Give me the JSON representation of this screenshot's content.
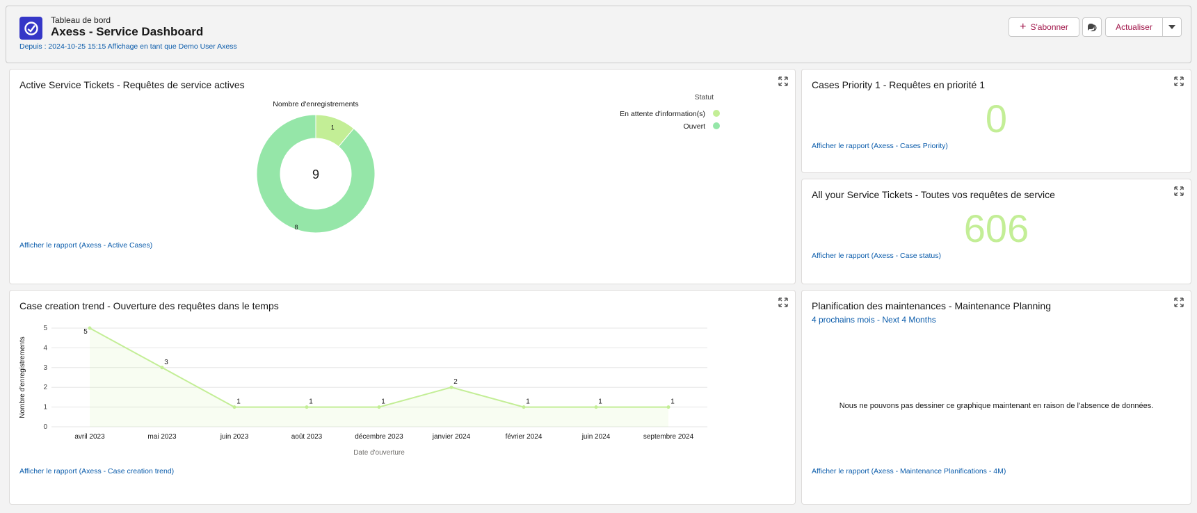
{
  "header": {
    "kicker": "Tableau de bord",
    "title": "Axess - Service Dashboard",
    "meta": "Depuis : 2024-10-25 15:15 Affichage en tant que Demo User Axess",
    "subscribe_label": "S'abonner",
    "refresh_label": "Actualiser",
    "icon": "dashboard-gauge-icon"
  },
  "panels": {
    "active_cases": {
      "title": "Active Service Tickets - Requêtes de service actives",
      "link": "Afficher le rapport (Axess - Active Cases)"
    },
    "priority": {
      "title": "Cases Priority 1 - Requêtes en priorité 1",
      "value": "0",
      "link": "Afficher le rapport (Axess - Cases Priority)"
    },
    "all_tickets": {
      "title": "All your Service Tickets - Toutes vos requêtes de service",
      "value": "606",
      "link": "Afficher le rapport (Axess - Case status)"
    },
    "trend": {
      "title": "Case creation trend - Ouverture des requêtes dans le temps",
      "link": "Afficher le rapport (Axess - Case creation trend)"
    },
    "maintenance": {
      "title": "Planification des maintenances - Maintenance Planning",
      "subtitle": "4 prochains mois - Next 4 Months",
      "nodata": "Nous ne pouvons pas dessiner ce graphique maintenant en raison de l'absence de données.",
      "link": "Afficher le rapport (Axess - Maintenance Planifications - 4M)"
    }
  },
  "chart_data": [
    {
      "type": "pie",
      "title": "Nombre d'enregistrements",
      "total": "9",
      "legend_title": "Statut",
      "legend_position": "top-right",
      "slices": [
        {
          "label": "En attente d'information(s)",
          "value": 1,
          "color": "#c3ee96"
        },
        {
          "label": "Ouvert",
          "value": 8,
          "color": "#95e6a8"
        }
      ]
    },
    {
      "type": "line",
      "xlabel": "Date d'ouverture",
      "ylabel": "Nombre d'enregistrements",
      "ylim": [
        0,
        5
      ],
      "yticks": [
        "0",
        "1",
        "2",
        "3",
        "4",
        "5"
      ],
      "categories": [
        "avril 2023",
        "mai 2023",
        "juin 2023",
        "août 2023",
        "décembre 2023",
        "janvier 2024",
        "février 2024",
        "juin 2024",
        "septembre 2024"
      ],
      "values": [
        5,
        3,
        1,
        1,
        1,
        2,
        1,
        1,
        1
      ],
      "color": "#c3ee96",
      "grid": true
    }
  ]
}
